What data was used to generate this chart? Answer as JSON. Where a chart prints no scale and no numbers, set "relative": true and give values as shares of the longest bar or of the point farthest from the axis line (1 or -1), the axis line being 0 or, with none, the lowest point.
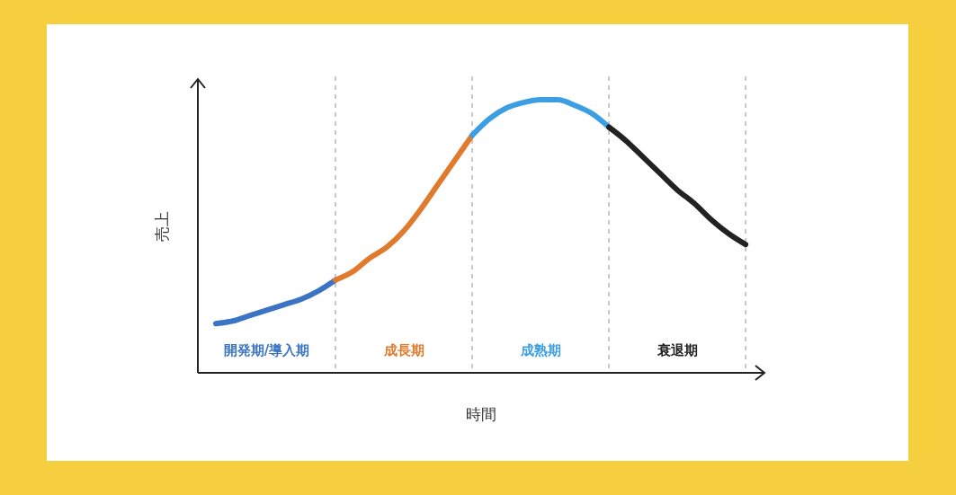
{
  "chart_data": {
    "type": "line",
    "relative": true,
    "xlabel": "時間",
    "ylabel": "売上",
    "grid": "x",
    "categories": [
      null,
      null,
      null,
      null,
      null,
      null,
      null,
      null,
      null,
      null,
      null,
      null,
      null,
      null,
      null,
      null,
      null,
      null,
      null,
      null,
      null,
      null,
      null,
      null,
      null,
      null,
      null,
      null,
      null,
      null,
      null,
      null
    ],
    "series": [
      {
        "name": "開発期/導入期",
        "color": "#3b74c5",
        "values": [
          0.18,
          0.19,
          0.21,
          0.23,
          0.25,
          0.27,
          0.3,
          0.34,
          null,
          null,
          null,
          null,
          null,
          null,
          null,
          null,
          null,
          null,
          null,
          null,
          null,
          null,
          null,
          null,
          null,
          null,
          null,
          null,
          null,
          null,
          null,
          null
        ]
      },
      {
        "name": "成長期",
        "color": "#e07a2c",
        "values": [
          null,
          null,
          null,
          null,
          null,
          null,
          null,
          0.34,
          0.37,
          0.42,
          0.46,
          0.52,
          0.6,
          0.69,
          0.78,
          0.87,
          null,
          null,
          null,
          null,
          null,
          null,
          null,
          null,
          null,
          null,
          null,
          null,
          null,
          null,
          null,
          null
        ]
      },
      {
        "name": "成熟期",
        "color": "#3d9fe3",
        "values": [
          null,
          null,
          null,
          null,
          null,
          null,
          null,
          null,
          null,
          null,
          null,
          null,
          null,
          null,
          null,
          0.87,
          0.93,
          0.97,
          0.99,
          1.0,
          1.0,
          0.98,
          0.95,
          0.9,
          null,
          null,
          null,
          null,
          null,
          null,
          null,
          null
        ]
      },
      {
        "name": "衰退期",
        "color": "#222222",
        "values": [
          null,
          null,
          null,
          null,
          null,
          null,
          null,
          null,
          null,
          null,
          null,
          null,
          null,
          null,
          null,
          null,
          null,
          null,
          null,
          null,
          null,
          null,
          null,
          0.9,
          0.85,
          0.79,
          0.73,
          0.67,
          0.62,
          0.56,
          0.51,
          0.47
        ]
      }
    ]
  }
}
